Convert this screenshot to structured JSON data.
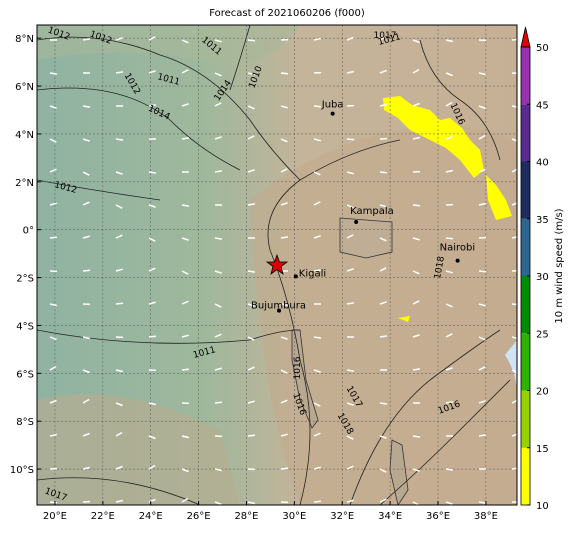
{
  "title": "Forecast of 2021060206 (f000)",
  "map": {
    "lonlim": [
      19.25,
      39.3
    ],
    "latlim": [
      -11.5,
      8.55
    ],
    "lonticks": [
      {
        "value": 20,
        "label": "20°E"
      },
      {
        "value": 22,
        "label": "22°E"
      },
      {
        "value": 24,
        "label": "24°E"
      },
      {
        "value": 26,
        "label": "26°E"
      },
      {
        "value": 28,
        "label": "28°E"
      },
      {
        "value": 30,
        "label": "30°E"
      },
      {
        "value": 32,
        "label": "32°E"
      },
      {
        "value": 34,
        "label": "34°E"
      },
      {
        "value": 36,
        "label": "36°E"
      },
      {
        "value": 38,
        "label": "38°E"
      }
    ],
    "latticks": [
      {
        "value": 8,
        "label": "8°N"
      },
      {
        "value": 6,
        "label": "6°N"
      },
      {
        "value": 4,
        "label": "4°N"
      },
      {
        "value": 2,
        "label": "2°N"
      },
      {
        "value": 0,
        "label": "0°"
      },
      {
        "value": -2,
        "label": "2°S"
      },
      {
        "value": -4,
        "label": "4°S"
      },
      {
        "value": -6,
        "label": "6°S"
      },
      {
        "value": -8,
        "label": "8°S"
      },
      {
        "value": -10,
        "label": "10°S"
      }
    ],
    "cities": [
      {
        "name": "Juba",
        "lon": 31.6,
        "lat": 4.85
      },
      {
        "name": "Kampala",
        "lon": 32.58,
        "lat": 0.32
      },
      {
        "name": "Kigali",
        "lon": 30.06,
        "lat": -1.95
      },
      {
        "name": "Bujumbura",
        "lon": 29.36,
        "lat": -3.38
      },
      {
        "name": "Nairobi",
        "lon": 36.82,
        "lat": -1.29
      }
    ],
    "contour_labels": [
      "1012",
      "1012",
      "1011",
      "1012",
      "1011",
      "1014",
      "1010",
      "1014",
      "1012",
      "1011",
      "1016",
      "1016",
      "1011",
      "1017",
      "1016",
      "1017",
      "1018",
      "1018",
      "1016",
      "1017"
    ]
  },
  "colorbar": {
    "label": "10 m wind speed (m/s)",
    "lim": [
      10,
      50
    ],
    "ticks": [
      10,
      15,
      20,
      25,
      30,
      35,
      40,
      45,
      50
    ],
    "colors": [
      "#ffff00",
      "#96d200",
      "#2eb400",
      "#008c00",
      "#2e6690",
      "#1c2d5e",
      "#5b2a8e",
      "#9a32ae"
    ],
    "extend_color": "#e00000"
  }
}
